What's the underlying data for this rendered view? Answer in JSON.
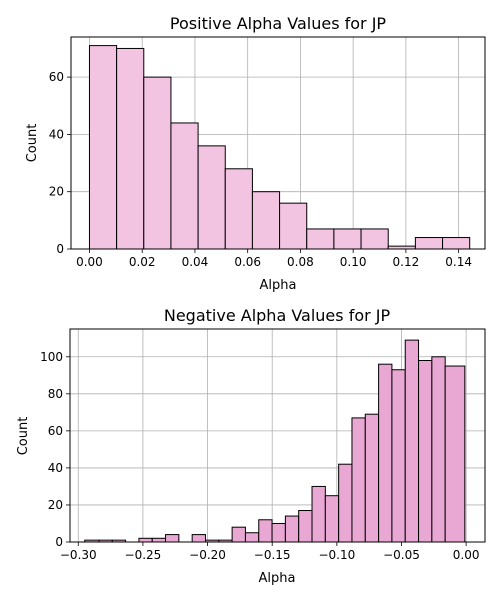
{
  "chart_data": [
    {
      "type": "bar",
      "title": "Positive Alpha Values for JP",
      "xlabel": "Alpha",
      "ylabel": "Count",
      "grid": true,
      "bar_color": "#f2c4e1",
      "edge_color": "#000000",
      "xlim": [
        -0.007,
        0.15
      ],
      "ylim": [
        0,
        74
      ],
      "xticks": [
        0.0,
        0.02,
        0.04,
        0.06,
        0.08,
        0.1,
        0.12,
        0.14
      ],
      "xtick_labels": [
        "0.00",
        "0.02",
        "0.04",
        "0.06",
        "0.08",
        "0.10",
        "0.12",
        "0.14"
      ],
      "yticks": [
        0,
        20,
        40,
        60
      ],
      "ytick_labels": [
        "0",
        "20",
        "40",
        "60"
      ],
      "bins": [
        [
          0.0,
          0.0103,
          71
        ],
        [
          0.0103,
          0.0206,
          70
        ],
        [
          0.0206,
          0.0309,
          60
        ],
        [
          0.0309,
          0.0412,
          44
        ],
        [
          0.0412,
          0.0515,
          36
        ],
        [
          0.0515,
          0.0618,
          28
        ],
        [
          0.0618,
          0.0721,
          20
        ],
        [
          0.0721,
          0.0824,
          16
        ],
        [
          0.0824,
          0.0927,
          7
        ],
        [
          0.0927,
          0.103,
          7
        ],
        [
          0.103,
          0.1133,
          7
        ],
        [
          0.1133,
          0.1236,
          1
        ],
        [
          0.1236,
          0.1339,
          4
        ],
        [
          0.1339,
          0.1442,
          4
        ]
      ]
    },
    {
      "type": "bar",
      "title": "Negative Alpha Values for JP",
      "xlabel": "Alpha",
      "ylabel": "Count",
      "grid": true,
      "bar_color": "#e8a8d3",
      "edge_color": "#000000",
      "xlim": [
        -0.3064,
        0.0146
      ],
      "ylim": [
        0,
        115
      ],
      "xticks": [
        -0.3,
        -0.25,
        -0.2,
        -0.15,
        -0.1,
        -0.05,
        0.0
      ],
      "xtick_labels": [
        "−0.30",
        "−0.25",
        "−0.20",
        "−0.15",
        "−0.10",
        "−0.05",
        "0.00"
      ],
      "yticks": [
        0,
        20,
        40,
        60,
        80,
        100
      ],
      "ytick_labels": [
        "0",
        "20",
        "40",
        "60",
        "80",
        "100"
      ],
      "bins": [
        [
          -0.295,
          -0.284,
          1
        ],
        [
          -0.284,
          -0.2737,
          1
        ],
        [
          -0.2737,
          -0.2634,
          1
        ],
        [
          -0.2634,
          -0.2531,
          0
        ],
        [
          -0.2531,
          -0.2428,
          2
        ],
        [
          -0.2428,
          -0.2325,
          2
        ],
        [
          -0.2325,
          -0.2222,
          4
        ],
        [
          -0.2222,
          -0.2119,
          0
        ],
        [
          -0.2119,
          -0.2016,
          4
        ],
        [
          -0.2016,
          -0.1913,
          1
        ],
        [
          -0.1913,
          -0.181,
          1
        ],
        [
          -0.181,
          -0.1707,
          8
        ],
        [
          -0.1707,
          -0.1604,
          5
        ],
        [
          -0.1604,
          -0.1501,
          12
        ],
        [
          -0.1501,
          -0.1398,
          10
        ],
        [
          -0.1398,
          -0.1295,
          14
        ],
        [
          -0.1295,
          -0.1192,
          17
        ],
        [
          -0.1192,
          -0.1089,
          30
        ],
        [
          -0.1089,
          -0.0986,
          25
        ],
        [
          -0.0986,
          -0.0883,
          42
        ],
        [
          -0.0883,
          -0.078,
          67
        ],
        [
          -0.078,
          -0.0677,
          69
        ],
        [
          -0.0677,
          -0.0574,
          96
        ],
        [
          -0.0574,
          -0.0471,
          93
        ],
        [
          -0.0471,
          -0.0368,
          109
        ],
        [
          -0.0368,
          -0.0265,
          98
        ],
        [
          -0.0265,
          -0.0162,
          100
        ],
        [
          -0.0162,
          -0.001,
          95
        ]
      ]
    }
  ]
}
